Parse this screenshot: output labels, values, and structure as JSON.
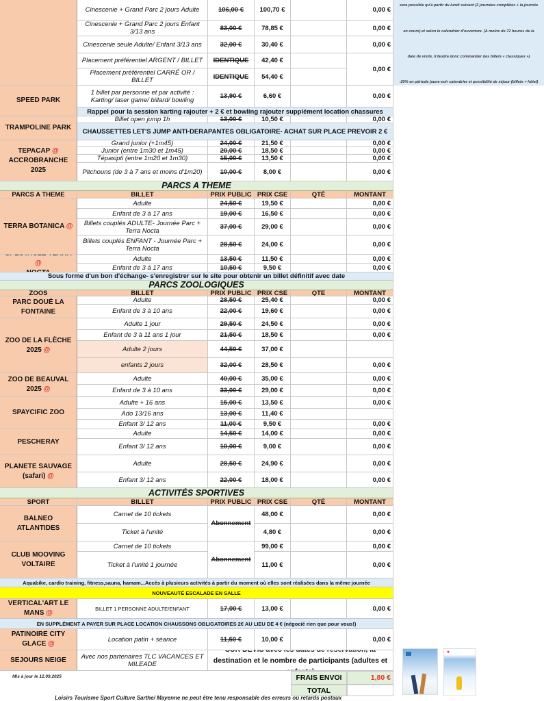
{
  "side_note": {
    "lines": [
      "sera possible qu'à partir du lundi suivant (2 journées complètes + la journée",
      "en cours) et selon le calendrier d'ouverture. (A moins de 72 heures de la",
      "date de visite, il faudra donc commander des billets « classiques »)",
      "-20% en période jaune-voir calendrier et possibilité de séjour (billets + hôtel)"
    ]
  },
  "blocks": [
    {
      "type": "group",
      "name": "",
      "at": false,
      "items": [
        {
          "billet": "Cinescenie + Grand Parc 2 jours Adulte",
          "public": "106,00 €",
          "cse": "100,70 €",
          "montant": "0,00 €"
        },
        {
          "billet": "Cinescenie + Grand Parc 2 jours Enfant 3/13 ans",
          "public": "83,00 €",
          "cse": "78,85 €",
          "montant": "0,00 €"
        },
        {
          "billet": "Cinescenie seule Adulte/ Enfant 3/13 ans",
          "public": "32,00 €",
          "cse": "30,40 €",
          "montant": "0,00 €"
        },
        {
          "billet": "Placement préférentiel ARGENT / BILLET",
          "public": "IDENTIQUE",
          "cse": "42,40 €",
          "montant": "0,00 €"
        },
        {
          "billet": "Placement préférentiel CARRÉ OR / BILLET",
          "public": "IDENTIQUE",
          "cse": "54,40 €",
          "montant": null
        }
      ]
    },
    {
      "type": "group",
      "name": "SPEED PARK",
      "at": false,
      "items": [
        {
          "billet": "1 billet par personne et par activité : Karting/ laser game/ billard/ bowling",
          "public": "13,90 €",
          "cse": "6,60 €",
          "montant": "0,00 €"
        },
        {
          "note": "Rappel pour la session karting rajouter + 2 € et bowling rajouter supplément location chassures"
        }
      ]
    },
    {
      "type": "group",
      "name": "TRAMPOLINE PARK",
      "at": false,
      "items": [
        {
          "billet": "Billet open jump 1h",
          "public": "13,00 €",
          "cse": "10,50 €",
          "montant": "0,00 €"
        },
        {
          "note": "CHAUSSETTES LET'S JUMP ANTI-DERAPANTES OBLIGATOIRE- ACHAT SUR PLACE PREVOIR 2 €"
        }
      ]
    },
    {
      "type": "group",
      "name": "TEPACAP",
      "at": true,
      "name2": "ACCROBRANCHE 2025",
      "items": [
        {
          "billet": "Grand junior (+1m45)",
          "public": "24,00 €",
          "cse": "21,50 €",
          "montant": "0,00 €"
        },
        {
          "billet": "Junior (entre 1m30 et 1m45)",
          "public": "20,00 €",
          "cse": "18,50 €",
          "montant": "0,00 €"
        },
        {
          "billet": "Tépasipti (entre 1m20 et 1m30)",
          "public": "15,00 €",
          "cse": "13,50 €",
          "montant": "0,00 €"
        },
        {
          "billet": "Pitchouns (de 3 à 7 ans et moins d'1m20)",
          "public": "10,00 €",
          "cse": "8,00 €",
          "montant": "0,00 €"
        }
      ]
    },
    {
      "type": "section",
      "title": "PARCS A THEME"
    },
    {
      "type": "header",
      "cols": [
        "PARCS A THEME",
        "BILLET",
        "PRIX PUBLIC",
        "PRIX CSE",
        "QTÉ",
        "MONTANT"
      ]
    },
    {
      "type": "group",
      "name": "TERRA BOTANICA",
      "at": true,
      "items": [
        {
          "billet": "Adulte",
          "public": "24,50 €",
          "cse": "19,50 €",
          "montant": "0,00 €"
        },
        {
          "billet": "Enfant de 3 à 17 ans",
          "public": "19,00 €",
          "cse": "16,50 €",
          "montant": "0,00 €"
        },
        {
          "billet": "Billets couplés ADULTE- Journée Parc + Terra Nocta",
          "public": "37,00 €",
          "cse": "29,00 €",
          "montant": "0,00 €"
        },
        {
          "billet": "Billets couplés ENFANT - Journée Parc + Terra Nocta",
          "public": "28,50 €",
          "cse": "24,00 €",
          "montant": "0,00 €"
        }
      ]
    },
    {
      "type": "group",
      "name": "SPECTACLE TERRA",
      "at": true,
      "name2": "NOCTA",
      "items": [
        {
          "billet": "Adulte",
          "public": "13,50 €",
          "cse": "11,50 €",
          "montant": "0,00 €"
        },
        {
          "billet": "Enfant de 3 à 17 ans",
          "public": "10,50 €",
          "cse": "9,50 €",
          "montant": "0,00 €"
        }
      ]
    },
    {
      "type": "note",
      "style": "blue",
      "text": "Sous forme d'un bon d'échange- s'enregistrer sur le site pour obtenir un billet définitif avec date"
    },
    {
      "type": "section",
      "title": "PARCS ZOOLOGIQUES"
    },
    {
      "type": "header",
      "cols": [
        "ZOOS",
        "BILLET",
        "PRIX PUBLIC",
        "PRIX CSE",
        "QTÉ",
        "MONTANT"
      ]
    },
    {
      "type": "group",
      "name": "PARC DOUÉ LA FONTAINE",
      "at": false,
      "items": [
        {
          "billet": "Adulte",
          "public": "28,50 €",
          "cse": "25,40 €",
          "montant": "0,00 €"
        },
        {
          "billet": "Enfant de 3 à 10 ans",
          "public": "22,00 €",
          "cse": "19,60 €",
          "montant": "0,00 €"
        }
      ]
    },
    {
      "type": "group",
      "name": "ZOO DE LA FLÈCHE 2025",
      "at": true,
      "items": [
        {
          "billet": "Adulte 1 jour",
          "public": "29,50 €",
          "cse": "24,50 €",
          "montant": "0,00 €"
        },
        {
          "billet": "Enfant de 3 à 11 ans 1 jour",
          "public": "21,50 €",
          "cse": "18,50 €",
          "montant": "0,00 €"
        },
        {
          "billet": "Adulte 2 jours",
          "public": "44,50 €",
          "cse": "37,00 €",
          "montant": "",
          "highlight": true
        },
        {
          "billet": "enfants 2 jours",
          "public": "32,00 €",
          "cse": "28,50 €",
          "montant": "0,00 €",
          "highlight": true
        }
      ]
    },
    {
      "type": "group",
      "name": "ZOO DE BEAUVAL 2025",
      "at": true,
      "items": [
        {
          "billet": "Adulte",
          "public": "40,00 €",
          "cse": "35,00 €",
          "montant": "0,00 €"
        },
        {
          "billet": "Enfant de 3 à 10 ans",
          "public": "33,00 €",
          "cse": "29,00 €",
          "montant": "0,00 €"
        }
      ]
    },
    {
      "type": "group",
      "name": "SPAYCIFIC ZOO",
      "at": false,
      "items": [
        {
          "billet": "Adulte + 16 ans",
          "public": "15,00 €",
          "cse": "13,50 €",
          "montant": "0,00 €"
        },
        {
          "billet": "Ado 13/16 ans",
          "public": "13,00 €",
          "cse": "11,40 €",
          "montant": ""
        },
        {
          "billet": "Enfant 3/ 12 ans",
          "public": "11,00 €",
          "cse": "9,50 €",
          "montant": "0,00 €"
        }
      ]
    },
    {
      "type": "group",
      "name": "PESCHERAY",
      "at": false,
      "items": [
        {
          "billet": "Adulte",
          "public": "14,50 €",
          "cse": "14,00 €",
          "montant": "0,00 €"
        },
        {
          "billet": "Enfant 3/ 12 ans",
          "public": "10,00 €",
          "cse": "9,00 €",
          "montant": "0,00 €"
        }
      ]
    },
    {
      "type": "group",
      "name": "PLANETE SAUVAGE (safari)",
      "at": true,
      "items": [
        {
          "billet": "Adulte",
          "public": "28,50 €",
          "cse": "24,90 €",
          "montant": "0,00 €"
        },
        {
          "billet": "Enfant 3/ 12 ans",
          "public": "22,00 €",
          "cse": "18,00 €",
          "montant": "0,00 €"
        }
      ]
    },
    {
      "type": "section",
      "title": "ACTIVITÉS SPORTIVES"
    },
    {
      "type": "header",
      "cols": [
        "SPORT",
        "BILLET",
        "PRIX PUBLIC",
        "PRIX CSE",
        "QTÉ",
        "MONTANT"
      ]
    },
    {
      "type": "group",
      "name": "BALNEO ATLANTIDES",
      "at": false,
      "items": [
        {
          "billet": "Carnet de 10 tickets",
          "public": "Abonnement",
          "cse": "48,00 €",
          "montant": "0,00 €"
        },
        {
          "billet": "Ticket à l'unité",
          "public": null,
          "cse": "4,80 €",
          "montant": "0,00 €"
        }
      ]
    },
    {
      "type": "group",
      "name": "CLUB MOOVING VOLTAIRE",
      "at": false,
      "items": [
        {
          "billet": "Carnet de 10 tickets",
          "public": "Abonnement",
          "cse": "99,00 €",
          "montant": "0,00 €"
        },
        {
          "billet": "Ticket à l'unité 1 journée",
          "public": null,
          "cse": "11,00 €",
          "montant": "0,00 €"
        }
      ]
    },
    {
      "type": "note",
      "style": "blue",
      "small": true,
      "text": "Aquabike, cardio training, fitness,sauna, hamam...Accès à plusieurs activités à partir du moment où elles sont réalisées dans la même journée"
    },
    {
      "type": "note",
      "style": "yellow",
      "text": "NOUVEAUTÉ ESCALADE EN SALLE"
    },
    {
      "type": "group",
      "name": "VERTICAL'ART LE MANS",
      "at": true,
      "items": [
        {
          "billet": "BILLET 1 PERSONNE ADULTE/ENFANT",
          "public": "17,00 €",
          "cse": "13,00 €",
          "montant": "0,00 €",
          "upright": true
        }
      ]
    },
    {
      "type": "note",
      "style": "blue",
      "small": true,
      "text": "EN SUPPLÉMENT A PAYER SUR PLACE LOCATION CHAUSSONS OBLIGATOIRES 2€ AU LIEU DE 4 € (négocié rien que pour vous!)"
    },
    {
      "type": "group",
      "name": "PATINOIRE CITY GLACE",
      "at": true,
      "items": [
        {
          "billet": "Location patin + séance",
          "public": "11,50 €",
          "cse": "10,00 €",
          "montant": "0,00 €"
        }
      ]
    },
    {
      "type": "group",
      "name": "SEJOURS NEIGE",
      "at": false,
      "items": [
        {
          "billet": "Avec nos partenaires TLC VACANCES ET MILEADE",
          "devis": "SUR DEVIS avec les dates de réservation, la destination et le nombre de participants (adultes et enfants)"
        }
      ]
    }
  ],
  "footer": {
    "updated": "Mis à jour le 12.09.2025",
    "shipping_label": "FRAIS ENVOI",
    "shipping_value": "1,80 €",
    "total_label": "TOTAL",
    "disclaimer": "Loisirs Tourisme Sport Culture Sarthe/ Mayenne ne peut être tenu responsable des erreurs ou retards postaux"
  },
  "brochures": [
    {
      "brand": "TLC"
    },
    {
      "brand": "Mileade"
    }
  ],
  "colors": {
    "name_cell": "#f8cbad",
    "section": "#e2efda",
    "note": "#ddebf7",
    "highlight": "#ffff00",
    "shipping_value": "#e0302c"
  }
}
